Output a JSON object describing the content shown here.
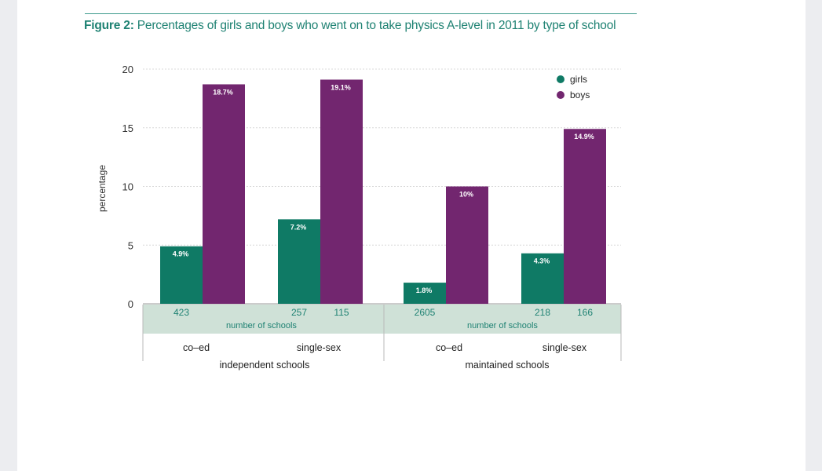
{
  "figure": {
    "label": "Figure 2:",
    "caption": "Percentages of girls and boys who went on to take physics A-level in 2011 by type of school"
  },
  "chart_data": {
    "type": "bar",
    "title": "Figure 2: Percentages of girls and boys who went on to take physics A-level in 2011 by type of school",
    "ylabel": "percentage",
    "xlabel": "",
    "ylim": [
      0,
      20
    ],
    "yticks": [
      0,
      5,
      10,
      15,
      20
    ],
    "grid": true,
    "legend_position": "top-right",
    "groups": [
      {
        "name": "independent schools",
        "categories": [
          "co–ed",
          "single-sex"
        ]
      },
      {
        "name": "maintained schools",
        "categories": [
          "co–ed",
          "single-sex"
        ]
      }
    ],
    "categories": [
      "co–ed",
      "single-sex",
      "co–ed",
      "single-sex"
    ],
    "series": [
      {
        "name": "girls",
        "color": "#0f7a65",
        "values": [
          4.9,
          7.2,
          1.8,
          4.3
        ],
        "labels": [
          "4.9%",
          "7.2%",
          "1.8%",
          "4.3%"
        ]
      },
      {
        "name": "boys",
        "color": "#72266f",
        "values": [
          18.7,
          19.1,
          10,
          14.9
        ],
        "labels": [
          "18.7%",
          "19.1%",
          "10%",
          "14.9%"
        ]
      }
    ],
    "school_counts": [
      [
        "423",
        ""
      ],
      [
        "257",
        "115"
      ],
      [
        "2605",
        ""
      ],
      [
        "218",
        "166"
      ]
    ],
    "count_label": "number of schools"
  }
}
